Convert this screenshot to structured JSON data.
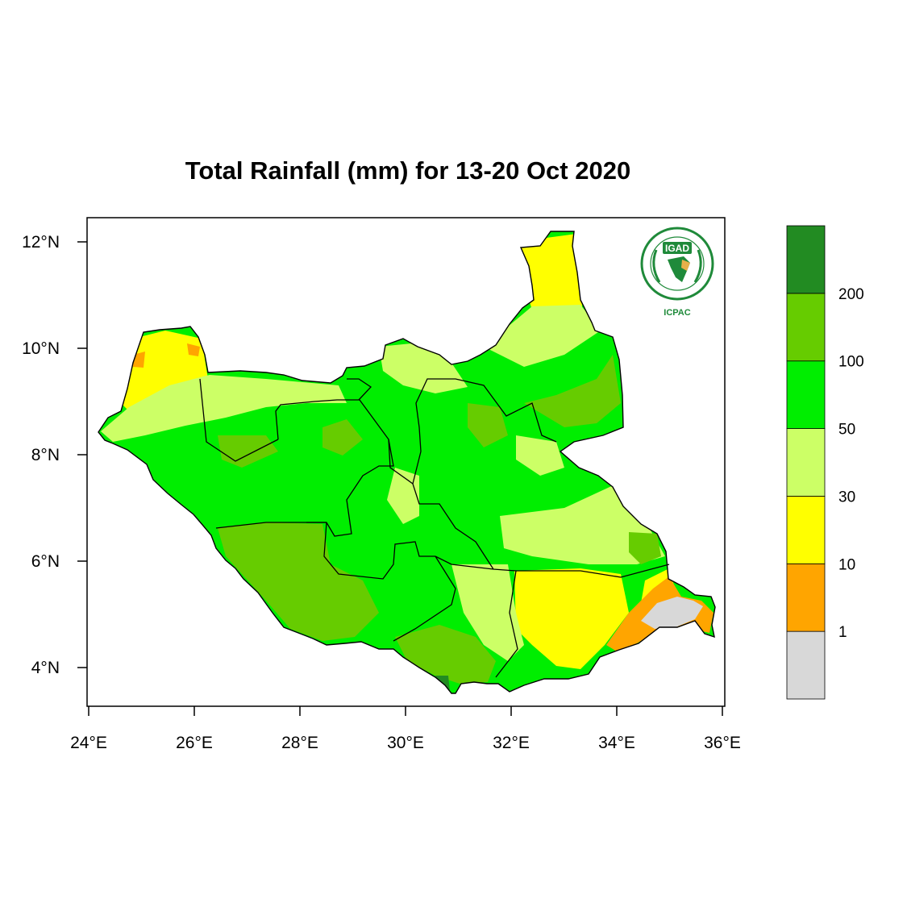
{
  "map": {
    "title": "Total Rainfall (mm) for 13-20 Oct 2020",
    "region": "South Sudan",
    "lon_range": [
      24,
      36
    ],
    "lat_range": [
      3.4,
      12.4
    ],
    "x_ticks": [
      {
        "value": 24,
        "label": "24°E"
      },
      {
        "value": 26,
        "label": "26°E"
      },
      {
        "value": 28,
        "label": "28°E"
      },
      {
        "value": 30,
        "label": "30°E"
      },
      {
        "value": 32,
        "label": "32°E"
      },
      {
        "value": 34,
        "label": "34°E"
      },
      {
        "value": 36,
        "label": "36°E"
      }
    ],
    "y_ticks": [
      {
        "value": 12,
        "label": "12°N"
      },
      {
        "value": 10,
        "label": "10°N"
      },
      {
        "value": 8,
        "label": "8°N"
      },
      {
        "value": 6,
        "label": "6°N"
      },
      {
        "value": 4,
        "label": "4°N"
      }
    ]
  },
  "legend": {
    "bins": [
      {
        "color": "#d8d8d8"
      },
      {
        "color": "#ffa500"
      },
      {
        "color": "#ffff00"
      },
      {
        "color": "#ccff66"
      },
      {
        "color": "#00ee00"
      },
      {
        "color": "#66cc00"
      },
      {
        "color": "#228b22"
      }
    ],
    "boundary_labels": [
      "1",
      "10",
      "30",
      "50",
      "100",
      "200"
    ]
  },
  "logo": {
    "name": "IGAD",
    "subtitle": "ICPAC",
    "icon": "igad-icpac-logo"
  }
}
